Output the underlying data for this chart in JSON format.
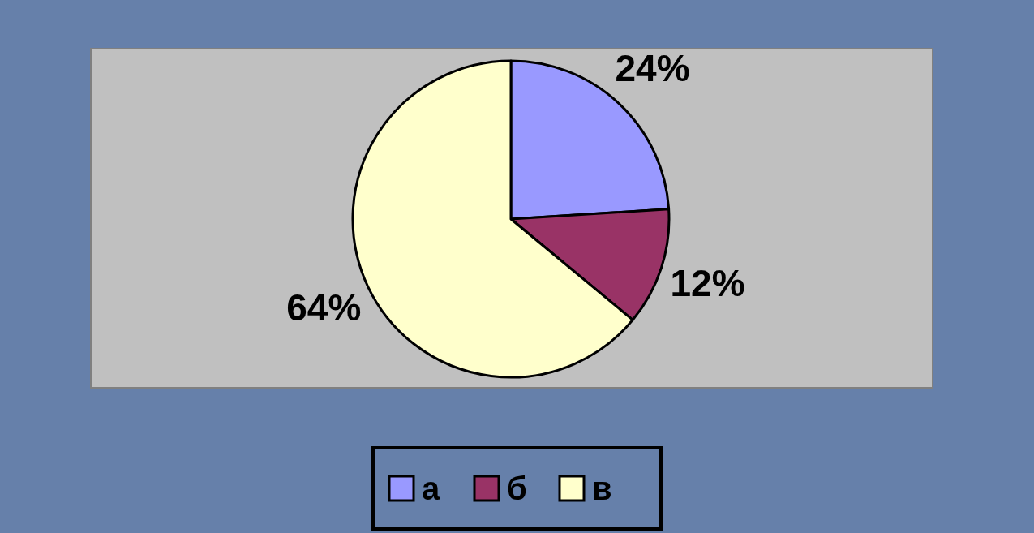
{
  "chart_data": {
    "type": "pie",
    "categories": [
      "а",
      "б",
      "в"
    ],
    "values": [
      24,
      12,
      64
    ],
    "colors": [
      "#9999ff",
      "#993366",
      "#ffffcc"
    ],
    "value_labels": [
      "24%",
      "12%",
      "64%"
    ],
    "legend": "bottom"
  }
}
